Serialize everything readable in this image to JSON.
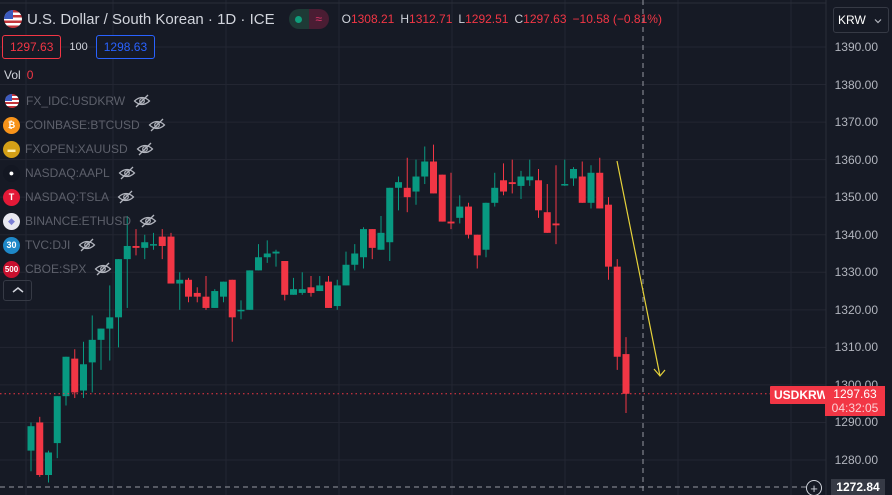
{
  "header": {
    "title": "U.S. Dollar / South Korean · 1D · ICE",
    "toggle_icon": "wave-icon",
    "ohlc": [
      {
        "key": "O",
        "value": "1308.21"
      },
      {
        "key": "H",
        "value": "1312.71"
      },
      {
        "key": "L",
        "value": "1292.51"
      },
      {
        "key": "C",
        "value": "1297.63"
      }
    ],
    "change": "−10.58 (−0.81%)"
  },
  "trade": {
    "sell_price": "1297.63",
    "spread": "100",
    "buy_price": "1298.63"
  },
  "volume": {
    "label": "Vol",
    "value": "0"
  },
  "compare_symbols": [
    {
      "symbol": "FX_IDC:USDKRW",
      "icon": "us-flag-icon",
      "color": "#3b5bbf",
      "glyph": ""
    },
    {
      "symbol": "COINBASE:BTCUSD",
      "icon": "bitcoin-icon",
      "color": "#f7931a",
      "glyph": "₿"
    },
    {
      "symbol": "FXOPEN:XAUUSD",
      "icon": "gold-icon",
      "color": "#d4a017",
      "glyph": "▬"
    },
    {
      "symbol": "NASDAQ:AAPL",
      "icon": "apple-icon",
      "color": "#131722",
      "glyph": "●"
    },
    {
      "symbol": "NASDAQ:TSLA",
      "icon": "tesla-icon",
      "color": "#e31937",
      "glyph": "T"
    },
    {
      "symbol": "BINANCE:ETHUSD",
      "icon": "ethereum-icon",
      "color": "#e8e8f0",
      "glyph": "◆"
    },
    {
      "symbol": "TVC:DJI",
      "icon": "dji-icon",
      "color": "#1e88c8",
      "glyph": "30"
    },
    {
      "symbol": "CBOE:SPX",
      "icon": "spx-icon",
      "color": "#c8102e",
      "glyph": "500"
    }
  ],
  "collapse_label": "^",
  "currency_selector": {
    "value": "KRW"
  },
  "price_axis": [
    "1390.00",
    "1380.00",
    "1370.00",
    "1360.00",
    "1350.00",
    "1340.00",
    "1330.00",
    "1320.00",
    "1310.00",
    "1300.00",
    "1290.00",
    "1280.00"
  ],
  "last_price": {
    "symbol": "USDKRW",
    "price": "1297.63",
    "countdown": "04:32:05"
  },
  "crosshair": {
    "price": "1272.84",
    "plus": "+"
  },
  "colors": {
    "up": "#089981",
    "down": "#f23645",
    "background": "#161a25",
    "grid": "#232632",
    "arrow": "#e6d23a"
  },
  "chart_data": {
    "type": "candlestick",
    "title": "U.S. Dollar / South Korean · 1D · ICE",
    "xlabel": "",
    "ylabel": "KRW",
    "ylim": [
      1270,
      1393
    ],
    "grid": true,
    "last_close": 1297.63,
    "candles": [
      {
        "o": 1282.5,
        "h": 1290.0,
        "l": 1277.0,
        "c": 1289.0
      },
      {
        "o": 1290.0,
        "h": 1291.5,
        "l": 1275.5,
        "c": 1276.0
      },
      {
        "o": 1276.0,
        "h": 1282.5,
        "l": 1274.0,
        "c": 1282.0
      },
      {
        "o": 1284.5,
        "h": 1296.5,
        "l": 1280.5,
        "c": 1297.0
      },
      {
        "o": 1297.0,
        "h": 1306.5,
        "l": 1294.5,
        "c": 1307.5
      },
      {
        "o": 1307.0,
        "h": 1309.5,
        "l": 1296.5,
        "c": 1298.0
      },
      {
        "o": 1298.5,
        "h": 1311.5,
        "l": 1296.5,
        "c": 1305.5
      },
      {
        "o": 1306.0,
        "h": 1318.5,
        "l": 1298.0,
        "c": 1312.0
      },
      {
        "o": 1312.0,
        "h": 1314.0,
        "l": 1304.0,
        "c": 1315.0
      },
      {
        "o": 1315.0,
        "h": 1326.5,
        "l": 1306.5,
        "c": 1318.0
      },
      {
        "o": 1318.0,
        "h": 1322.5,
        "l": 1310.0,
        "c": 1333.5
      },
      {
        "o": 1333.5,
        "h": 1345.0,
        "l": 1320.5,
        "c": 1337.0
      },
      {
        "o": 1337.0,
        "h": 1341.5,
        "l": 1334.5,
        "c": 1336.5
      },
      {
        "o": 1336.5,
        "h": 1340.0,
        "l": 1333.5,
        "c": 1338.0
      },
      {
        "o": 1337.5,
        "h": 1340.5,
        "l": 1336.0,
        "c": 1337.5
      },
      {
        "o": 1339.5,
        "h": 1341.5,
        "l": 1333.5,
        "c": 1337.0
      },
      {
        "o": 1339.5,
        "h": 1340.5,
        "l": 1327.0,
        "c": 1327.0
      },
      {
        "o": 1327.0,
        "h": 1330.0,
        "l": 1320.0,
        "c": 1328.0
      },
      {
        "o": 1328.0,
        "h": 1328.5,
        "l": 1322.0,
        "c": 1323.5
      },
      {
        "o": 1324.5,
        "h": 1326.0,
        "l": 1322.0,
        "c": 1323.5
      },
      {
        "o": 1323.5,
        "h": 1329.0,
        "l": 1320.0,
        "c": 1320.5
      },
      {
        "o": 1320.5,
        "h": 1325.5,
        "l": 1321.5,
        "c": 1325.0
      },
      {
        "o": 1323.5,
        "h": 1326.0,
        "l": 1322.0,
        "c": 1327.5
      },
      {
        "o": 1328.0,
        "h": 1326.5,
        "l": 1311.5,
        "c": 1318.0
      },
      {
        "o": 1320.0,
        "h": 1322.5,
        "l": 1317.5,
        "c": 1320.0
      },
      {
        "o": 1320.0,
        "h": 1330.0,
        "l": 1321.0,
        "c": 1330.5
      },
      {
        "o": 1330.5,
        "h": 1337.5,
        "l": 1332.0,
        "c": 1334.0
      },
      {
        "o": 1334.0,
        "h": 1338.5,
        "l": 1332.5,
        "c": 1335.0
      },
      {
        "o": 1335.0,
        "h": 1336.0,
        "l": 1331.5,
        "c": 1335.5
      },
      {
        "o": 1333.0,
        "h": 1331.5,
        "l": 1322.5,
        "c": 1324.0
      },
      {
        "o": 1324.0,
        "h": 1328.5,
        "l": 1324.0,
        "c": 1325.5
      },
      {
        "o": 1324.5,
        "h": 1330.0,
        "l": 1324.0,
        "c": 1325.5
      },
      {
        "o": 1326.0,
        "h": 1329.0,
        "l": 1323.5,
        "c": 1324.5
      },
      {
        "o": 1325.0,
        "h": 1329.0,
        "l": 1326.0,
        "c": 1326.5
      },
      {
        "o": 1327.5,
        "h": 1329.0,
        "l": 1320.5,
        "c": 1320.5
      },
      {
        "o": 1321.0,
        "h": 1328.0,
        "l": 1320.0,
        "c": 1326.5
      },
      {
        "o": 1326.5,
        "h": 1335.5,
        "l": 1328.5,
        "c": 1332.0
      },
      {
        "o": 1332.0,
        "h": 1337.5,
        "l": 1330.5,
        "c": 1335.0
      },
      {
        "o": 1334.0,
        "h": 1342.0,
        "l": 1331.0,
        "c": 1341.5
      },
      {
        "o": 1341.5,
        "h": 1339.5,
        "l": 1333.5,
        "c": 1336.5
      },
      {
        "o": 1336.0,
        "h": 1345.0,
        "l": 1336.5,
        "c": 1340.5
      },
      {
        "o": 1338.0,
        "h": 1349.5,
        "l": 1333.0,
        "c": 1352.5
      },
      {
        "o": 1352.5,
        "h": 1355.5,
        "l": 1346.5,
        "c": 1354.0
      },
      {
        "o": 1352.5,
        "h": 1360.5,
        "l": 1346.0,
        "c": 1350.0
      },
      {
        "o": 1351.5,
        "h": 1360.0,
        "l": 1348.0,
        "c": 1355.5
      },
      {
        "o": 1355.5,
        "h": 1363.5,
        "l": 1353.5,
        "c": 1359.5
      },
      {
        "o": 1359.5,
        "h": 1364.0,
        "l": 1351.0,
        "c": 1351.0
      },
      {
        "o": 1356.0,
        "h": 1352.5,
        "l": 1346.5,
        "c": 1343.5
      },
      {
        "o": 1343.5,
        "h": 1356.5,
        "l": 1341.5,
        "c": 1343.0
      },
      {
        "o": 1344.5,
        "h": 1350.5,
        "l": 1343.0,
        "c": 1347.5
      },
      {
        "o": 1347.5,
        "h": 1348.5,
        "l": 1339.0,
        "c": 1340.0
      },
      {
        "o": 1340.0,
        "h": 1336.5,
        "l": 1331.0,
        "c": 1334.5
      },
      {
        "o": 1336.0,
        "h": 1345.0,
        "l": 1334.0,
        "c": 1348.5
      },
      {
        "o": 1348.5,
        "h": 1356.5,
        "l": 1347.5,
        "c": 1352.5
      },
      {
        "o": 1354.5,
        "h": 1359.0,
        "l": 1350.5,
        "c": 1351.5
      },
      {
        "o": 1354.0,
        "h": 1360.0,
        "l": 1351.0,
        "c": 1353.5
      },
      {
        "o": 1353.0,
        "h": 1357.0,
        "l": 1349.5,
        "c": 1355.5
      },
      {
        "o": 1354.5,
        "h": 1360.0,
        "l": 1353.0,
        "c": 1355.5
      },
      {
        "o": 1354.5,
        "h": 1357.5,
        "l": 1344.5,
        "c": 1346.5
      },
      {
        "o": 1346.0,
        "h": 1353.5,
        "l": 1340.5,
        "c": 1340.5
      },
      {
        "o": 1343.0,
        "h": 1358.5,
        "l": 1337.5,
        "c": 1342.5
      },
      {
        "o": 1353.5,
        "h": 1360.0,
        "l": 1353.0,
        "c": 1353.5
      },
      {
        "o": 1355.0,
        "h": 1358.0,
        "l": 1353.0,
        "c": 1357.5
      },
      {
        "o": 1355.5,
        "h": 1359.5,
        "l": 1349.5,
        "c": 1348.5
      },
      {
        "o": 1348.5,
        "h": 1358.5,
        "l": 1347.0,
        "c": 1356.5
      },
      {
        "o": 1356.5,
        "h": 1360.5,
        "l": 1347.0,
        "c": 1347.0
      },
      {
        "o": 1348.0,
        "h": 1350.0,
        "l": 1328.0,
        "c": 1331.5
      },
      {
        "o": 1331.5,
        "h": 1333.5,
        "l": 1304.0,
        "c": 1307.5
      },
      {
        "o": 1308.21,
        "h": 1312.71,
        "l": 1292.51,
        "c": 1297.63
      }
    ],
    "annotations": [
      {
        "type": "arrow",
        "from_price": 1360,
        "to_price": 1300,
        "color": "#e6d23a",
        "description": "yellow down arrow"
      }
    ]
  }
}
